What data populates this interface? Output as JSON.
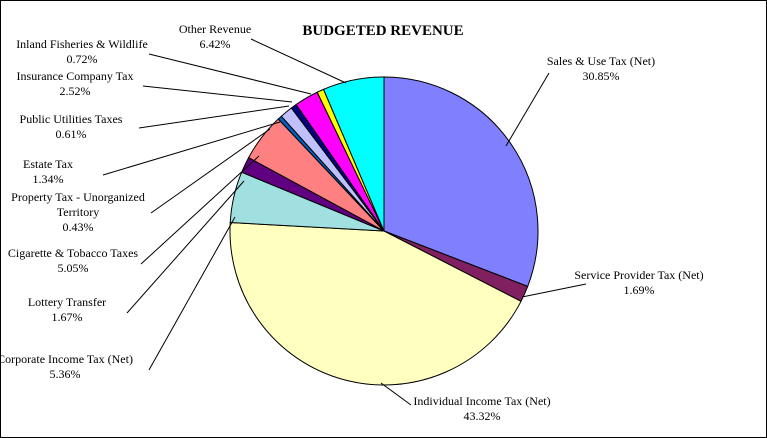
{
  "chart_data": {
    "type": "pie",
    "title": "BUDGETED REVENUE",
    "start_angle_deg": 0,
    "direction": "clockwise",
    "slices": [
      {
        "name": "Sales & Use Tax (Net)",
        "value": 30.85,
        "label": "30.85%",
        "color": "#8080ff"
      },
      {
        "name": "Service Provider Tax (Net)",
        "value": 1.69,
        "label": "1.69%",
        "color": "#802060"
      },
      {
        "name": "Individual Income Tax (Net)",
        "value": 43.32,
        "label": "43.32%",
        "color": "#ffffc0"
      },
      {
        "name": "Corporate Income Tax (Net)",
        "value": 5.36,
        "label": "5.36%",
        "color": "#a0e0e0"
      },
      {
        "name": "Lottery Transfer",
        "value": 1.67,
        "label": "1.67%",
        "color": "#600080"
      },
      {
        "name": "Cigarette & Tobacco Taxes",
        "value": 5.05,
        "label": "5.05%",
        "color": "#ff8080"
      },
      {
        "name": "Property Tax  - Unorganized Territory",
        "value": 0.43,
        "label": "0.43%",
        "color": "#0060c0"
      },
      {
        "name": "Estate Tax",
        "value": 1.34,
        "label": "1.34%",
        "color": "#c0c0ff"
      },
      {
        "name": "Public Utilities Taxes",
        "value": 0.61,
        "label": "0.61%",
        "color": "#000080"
      },
      {
        "name": "Insurance Company Tax",
        "value": 2.52,
        "label": "2.52%",
        "color": "#ff00ff"
      },
      {
        "name": "Inland Fisheries & Wildlife",
        "value": 0.72,
        "label": "0.72%",
        "color": "#ffff00"
      },
      {
        "name": "Other Revenue",
        "value": 6.42,
        "label": "6.42%",
        "color": "#00ffff"
      }
    ]
  }
}
